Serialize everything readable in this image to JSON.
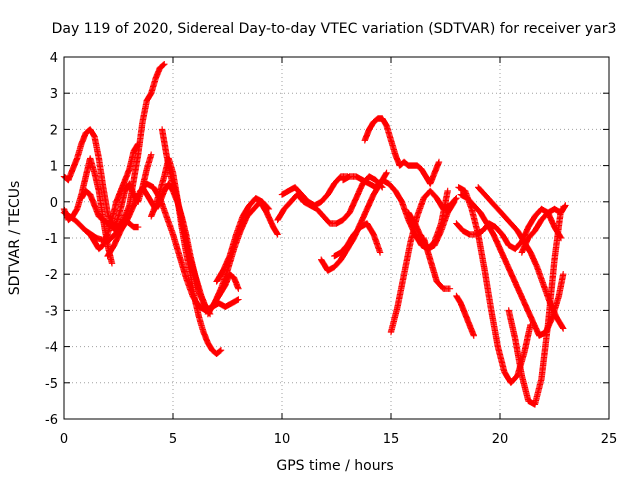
{
  "chart_data": {
    "type": "scatter",
    "title": "Day 119 of 2020, Sidereal Day-to-day VTEC variation (SDTVAR) for receiver yar3",
    "xlabel": "GPS time / hours",
    "ylabel": "SDTVAR / TECUs",
    "xlim": [
      0,
      25
    ],
    "ylim": [
      -6,
      4
    ],
    "xticks": [
      "0",
      "5",
      "10",
      "15",
      "20",
      "25"
    ],
    "yticks": [
      "4",
      "3",
      "2",
      "1",
      "0",
      "-1",
      "-2",
      "-3",
      "-4",
      "-5",
      "-6"
    ],
    "grid": true,
    "marker": "plus",
    "color": "#ff0000",
    "series": [
      {
        "name": "s1",
        "x": [
          0.0,
          0.2,
          0.4,
          0.6,
          0.8,
          1.0,
          1.2,
          1.4,
          1.6,
          1.8,
          2.0,
          2.2,
          2.4,
          2.6,
          2.8,
          3.0,
          3.2,
          3.4
        ],
        "y": [
          0.7,
          0.6,
          0.9,
          1.2,
          1.6,
          1.9,
          2.0,
          1.8,
          1.2,
          0.4,
          -0.3,
          -0.7,
          -0.8,
          -0.6,
          -0.5,
          -0.6,
          -0.7,
          -0.7
        ]
      },
      {
        "name": "s2",
        "x": [
          0.0,
          0.2,
          0.4,
          0.6,
          0.8,
          1.0,
          1.2,
          1.4,
          1.6,
          1.8,
          2.0,
          2.2
        ],
        "y": [
          -0.2,
          -0.5,
          -0.4,
          -0.2,
          0.2,
          0.7,
          1.2,
          0.8,
          0.3,
          -0.5,
          -1.2,
          -1.7
        ]
      },
      {
        "name": "s3",
        "x": [
          0.8,
          1.0,
          1.2,
          1.4,
          1.6,
          1.8,
          2.0,
          2.2,
          2.4,
          2.6,
          2.8,
          3.0,
          3.2,
          3.4,
          3.6,
          3.8,
          4.0
        ],
        "y": [
          0.1,
          0.3,
          0.2,
          -0.1,
          -0.4,
          -0.5,
          -0.6,
          -0.7,
          -0.6,
          -0.2,
          0.3,
          0.5,
          0.2,
          0.0,
          0.4,
          0.9,
          1.3
        ]
      },
      {
        "name": "s4",
        "x": [
          0.0,
          0.5,
          1.0,
          1.5,
          2.0,
          2.5,
          3.0,
          3.2,
          3.4,
          3.6,
          3.8,
          4.0,
          4.2,
          4.4,
          4.6
        ],
        "y": [
          -0.3,
          -0.5,
          -0.8,
          -1.0,
          -1.1,
          -0.8,
          -0.1,
          0.6,
          1.3,
          2.2,
          2.8,
          3.0,
          3.4,
          3.7,
          3.8
        ]
      },
      {
        "name": "s5",
        "x": [
          1.0,
          1.2,
          1.4,
          1.6,
          1.8,
          2.0,
          2.2,
          2.4,
          2.6,
          2.8,
          3.0,
          3.2,
          3.4
        ],
        "y": [
          -0.8,
          -0.9,
          -1.1,
          -1.3,
          -1.2,
          -0.9,
          -0.5,
          0.0,
          0.3,
          0.6,
          0.9,
          1.4,
          1.6
        ]
      },
      {
        "name": "s6",
        "x": [
          2.0,
          2.3,
          2.6,
          2.9,
          3.2,
          3.5,
          3.8,
          4.1,
          4.4,
          4.7,
          5.0,
          5.3,
          5.6,
          5.9,
          6.2,
          6.5,
          6.8,
          7.1,
          7.4,
          7.7,
          8.0
        ],
        "y": [
          -1.5,
          -1.2,
          -0.8,
          -0.5,
          -0.1,
          0.3,
          0.5,
          0.4,
          0.1,
          -0.4,
          -0.9,
          -1.5,
          -2.1,
          -2.6,
          -2.9,
          -3.0,
          -2.9,
          -2.8,
          -2.9,
          -2.8,
          -2.7
        ]
      },
      {
        "name": "s7",
        "x": [
          4.0,
          4.2,
          4.4,
          4.6,
          4.8,
          5.0,
          5.2,
          5.4,
          5.6,
          5.8,
          6.0,
          6.2,
          6.4,
          6.6,
          6.8,
          7.0,
          7.2
        ],
        "y": [
          -0.4,
          -0.1,
          0.3,
          0.7,
          1.2,
          0.8,
          0.1,
          -0.7,
          -1.4,
          -2.0,
          -2.7,
          -3.2,
          -3.6,
          -3.9,
          -4.1,
          -4.2,
          -4.1
        ]
      },
      {
        "name": "s8",
        "x": [
          3.6,
          3.8,
          4.0,
          4.2,
          4.4,
          4.6,
          4.8,
          5.0,
          5.2,
          5.4,
          5.6,
          5.8,
          6.0,
          6.2,
          6.4,
          6.6,
          6.8,
          7.0,
          7.2,
          7.4,
          7.6,
          7.8,
          8.0
        ],
        "y": [
          0.4,
          0.2,
          0.0,
          -0.2,
          0.0,
          0.3,
          0.5,
          0.3,
          0.0,
          -0.4,
          -0.9,
          -1.5,
          -2.0,
          -2.5,
          -2.8,
          -3.0,
          -2.9,
          -2.7,
          -2.5,
          -2.3,
          -2.0,
          -2.1,
          -2.4
        ]
      },
      {
        "name": "s9",
        "x": [
          4.5,
          4.7,
          4.9,
          5.1,
          5.3,
          5.5,
          5.7,
          5.9,
          6.1,
          6.3,
          6.5,
          6.7
        ],
        "y": [
          2.0,
          1.3,
          0.7,
          0.3,
          -0.2,
          -0.8,
          -1.4,
          -1.8,
          -2.2,
          -2.6,
          -2.9,
          -3.1
        ]
      },
      {
        "name": "s10",
        "x": [
          6.6,
          6.9,
          7.2,
          7.5,
          7.8,
          8.1,
          8.4,
          8.7,
          9.0,
          9.3,
          9.6,
          9.8
        ],
        "y": [
          -3.1,
          -2.8,
          -2.4,
          -1.9,
          -1.3,
          -0.8,
          -0.4,
          -0.2,
          0.0,
          -0.3,
          -0.7,
          -0.9
        ]
      },
      {
        "name": "s11",
        "x": [
          7.0,
          7.3,
          7.6,
          7.9,
          8.2,
          8.5,
          8.8,
          9.1,
          9.4
        ],
        "y": [
          -2.2,
          -1.9,
          -1.5,
          -0.9,
          -0.4,
          -0.1,
          0.1,
          0.0,
          -0.2
        ]
      },
      {
        "name": "s12",
        "x": [
          9.8,
          10.1,
          10.4,
          10.7,
          11.0,
          11.3,
          11.6,
          11.9,
          12.2,
          12.5,
          12.8,
          13.1,
          13.4,
          13.7,
          14.0,
          14.3,
          14.6
        ],
        "y": [
          -0.5,
          -0.2,
          0.0,
          0.2,
          0.0,
          -0.1,
          -0.2,
          -0.4,
          -0.6,
          -0.6,
          -0.5,
          -0.3,
          0.1,
          0.5,
          0.7,
          0.6,
          0.4
        ]
      },
      {
        "name": "s13",
        "x": [
          10.0,
          10.3,
          10.6,
          10.9,
          11.2,
          11.5,
          11.8,
          12.1,
          12.4,
          12.7,
          13.0
        ],
        "y": [
          0.2,
          0.3,
          0.4,
          0.2,
          0.0,
          -0.1,
          0.0,
          0.2,
          0.5,
          0.7,
          0.7
        ]
      },
      {
        "name": "s14",
        "x": [
          11.8,
          12.1,
          12.4,
          12.7,
          13.0,
          13.3,
          13.6,
          13.9,
          14.2,
          14.5,
          14.8
        ],
        "y": [
          -1.6,
          -1.9,
          -1.8,
          -1.6,
          -1.3,
          -1.0,
          -0.6,
          -0.2,
          0.2,
          0.5,
          0.8
        ]
      },
      {
        "name": "s15",
        "x": [
          12.4,
          12.7,
          13.0,
          13.3,
          13.6,
          13.9,
          14.2,
          14.5
        ],
        "y": [
          -1.5,
          -1.4,
          -1.2,
          -0.9,
          -0.7,
          -0.6,
          -0.9,
          -1.4
        ]
      },
      {
        "name": "s16",
        "x": [
          12.8,
          13.1,
          13.4,
          13.7,
          14.0,
          14.3,
          14.6,
          14.9,
          15.2,
          15.5,
          15.8,
          16.1,
          16.4,
          16.7,
          17.0,
          17.3,
          17.6
        ],
        "y": [
          0.6,
          0.7,
          0.7,
          0.6,
          0.5,
          0.4,
          0.6,
          0.5,
          0.3,
          0.0,
          -0.5,
          -0.9,
          -1.2,
          -1.3,
          -1.1,
          -0.6,
          0.3
        ]
      },
      {
        "name": "s17",
        "x": [
          13.8,
          14.0,
          14.2,
          14.4,
          14.6,
          14.8,
          15.0,
          15.2,
          15.4,
          15.6,
          15.8,
          16.0,
          16.2,
          16.4,
          16.6,
          16.8,
          17.0,
          17.2
        ],
        "y": [
          1.7,
          2.0,
          2.2,
          2.3,
          2.3,
          2.1,
          1.7,
          1.3,
          1.0,
          1.1,
          1.0,
          1.0,
          1.0,
          0.9,
          0.7,
          0.5,
          0.8,
          1.1
        ]
      },
      {
        "name": "s18",
        "x": [
          15.0,
          15.3,
          15.6,
          15.9,
          16.2,
          16.5,
          16.8,
          17.1,
          17.4,
          17.7,
          18.0
        ],
        "y": [
          -3.6,
          -2.9,
          -2.0,
          -1.1,
          -0.4,
          0.1,
          0.3,
          0.1,
          -0.2,
          -0.1,
          0.1
        ]
      },
      {
        "name": "s19",
        "x": [
          15.8,
          16.1,
          16.4,
          16.7,
          17.0,
          17.3,
          17.6,
          17.9
        ],
        "y": [
          -0.3,
          -0.6,
          -1.0,
          -1.3,
          -1.2,
          -0.8,
          -0.3,
          0.0
        ]
      },
      {
        "name": "s20",
        "x": [
          16.5,
          16.8,
          17.1,
          17.4,
          17.7
        ],
        "y": [
          -1.0,
          -1.6,
          -2.2,
          -2.4,
          -2.4
        ]
      },
      {
        "name": "s21",
        "x": [
          18.0,
          18.2,
          18.4,
          18.6,
          18.8
        ],
        "y": [
          -2.6,
          -2.8,
          -3.1,
          -3.4,
          -3.7
        ]
      },
      {
        "name": "s22",
        "x": [
          18.1,
          18.4,
          18.7,
          19.0,
          19.3,
          19.6,
          19.9,
          20.2,
          20.5,
          20.8,
          21.1,
          21.4
        ],
        "y": [
          0.4,
          0.3,
          -0.2,
          -0.9,
          -1.9,
          -3.0,
          -4.0,
          -4.7,
          -5.0,
          -4.8,
          -4.2,
          -3.4
        ]
      },
      {
        "name": "s23",
        "x": [
          18.2,
          18.5,
          18.8,
          19.1,
          19.4,
          19.7,
          20.0,
          20.3,
          20.6,
          20.9,
          21.2,
          21.5,
          21.8,
          22.1,
          22.4,
          22.7,
          22.9
        ],
        "y": [
          0.2,
          0.1,
          -0.1,
          -0.3,
          -0.6,
          -0.9,
          -1.3,
          -1.7,
          -2.1,
          -2.5,
          -2.9,
          -3.3,
          -3.7,
          -3.6,
          -3.2,
          -2.6,
          -2.0
        ]
      },
      {
        "name": "s24",
        "x": [
          18.0,
          18.3,
          18.6,
          18.9,
          19.2,
          19.5,
          19.8,
          20.1,
          20.4,
          20.7,
          21.0,
          21.3,
          21.6,
          21.9,
          22.2,
          22.5,
          22.8
        ],
        "y": [
          -0.6,
          -0.8,
          -0.9,
          -0.9,
          -0.8,
          -0.6,
          -0.7,
          -0.9,
          -1.2,
          -1.3,
          -1.1,
          -0.7,
          -0.4,
          -0.2,
          -0.3,
          -0.7,
          -1.0
        ]
      },
      {
        "name": "s25",
        "x": [
          19.0,
          19.3,
          19.6,
          19.9,
          20.2,
          20.5,
          20.8,
          21.1,
          21.4,
          21.7,
          22.0,
          22.3,
          22.6,
          22.9
        ],
        "y": [
          0.4,
          0.2,
          0.0,
          -0.2,
          -0.4,
          -0.6,
          -0.8,
          -1.1,
          -1.4,
          -1.8,
          -2.3,
          -2.8,
          -3.2,
          -3.5
        ]
      },
      {
        "name": "s26",
        "x": [
          20.4,
          20.7,
          21.0,
          21.3,
          21.6,
          21.9,
          22.2,
          22.5,
          22.8
        ],
        "y": [
          -3.0,
          -3.8,
          -4.8,
          -5.5,
          -5.6,
          -4.9,
          -3.4,
          -1.6,
          -0.2
        ]
      },
      {
        "name": "s27",
        "x": [
          21.0,
          21.3,
          21.6,
          21.9,
          22.2,
          22.5,
          22.8,
          23.0
        ],
        "y": [
          -1.4,
          -1.0,
          -0.8,
          -0.5,
          -0.3,
          -0.2,
          -0.3,
          -0.1
        ]
      }
    ]
  }
}
